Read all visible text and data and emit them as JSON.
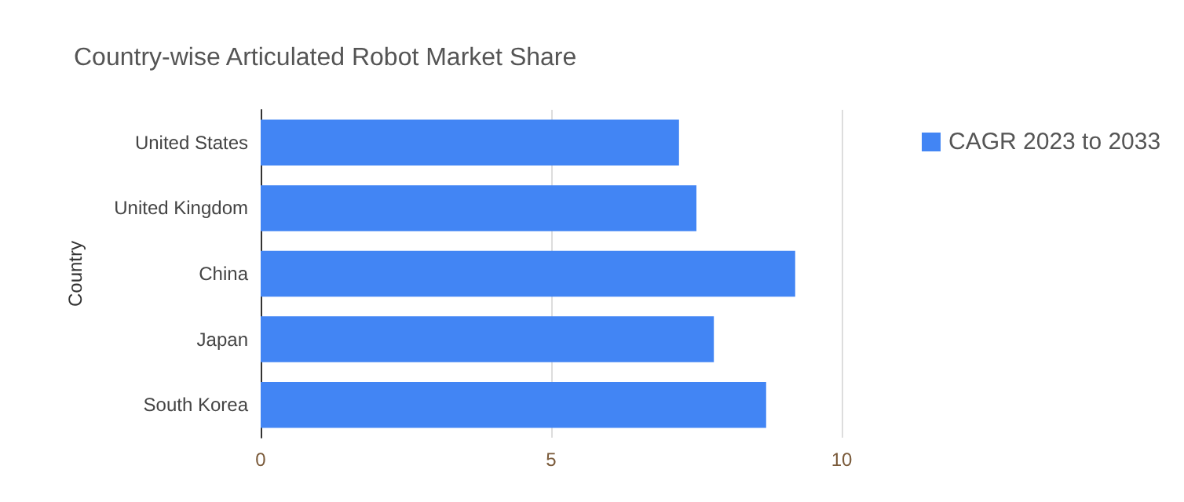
{
  "chart_data": {
    "type": "bar",
    "title": "Country-wise Articulated Robot Market Share",
    "ylabel": "Country",
    "orientation": "horizontal",
    "categories": [
      "United States",
      "United Kingdom",
      "China",
      "Japan",
      "South Korea"
    ],
    "series": [
      {
        "name": "CAGR 2023 to 2033",
        "color": "#4285f4",
        "values": [
          7.2,
          7.5,
          9.2,
          7.8,
          8.7
        ]
      }
    ],
    "xlim": [
      0,
      10
    ],
    "xticks": [
      0,
      5,
      10
    ],
    "grid": "x",
    "legend": "top right"
  }
}
